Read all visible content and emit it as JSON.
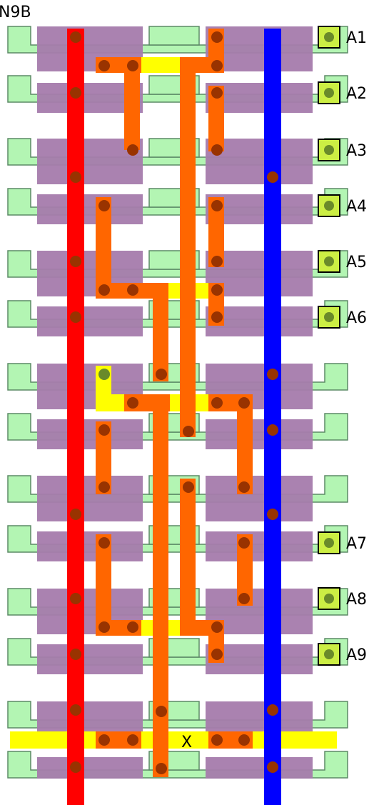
{
  "cell_name": "N9B",
  "pin_labels": [
    "A1",
    "A2",
    "A3",
    "A4",
    "A5",
    "A6",
    "A7",
    "A8",
    "A9"
  ],
  "output_label": "X",
  "colors": {
    "diffusion": "#b3f5b3",
    "diffusion_outline": "#5c8a66",
    "poly": "#a57bac",
    "metal1": "#ff6600",
    "metal1_yellow": "#ffff00",
    "vdd_rail": "#ff0000",
    "gnd_rail": "#0000ff",
    "via": "#993300",
    "pin_fill": "#ccee44",
    "pin_dot": "#6a8a2a"
  }
}
